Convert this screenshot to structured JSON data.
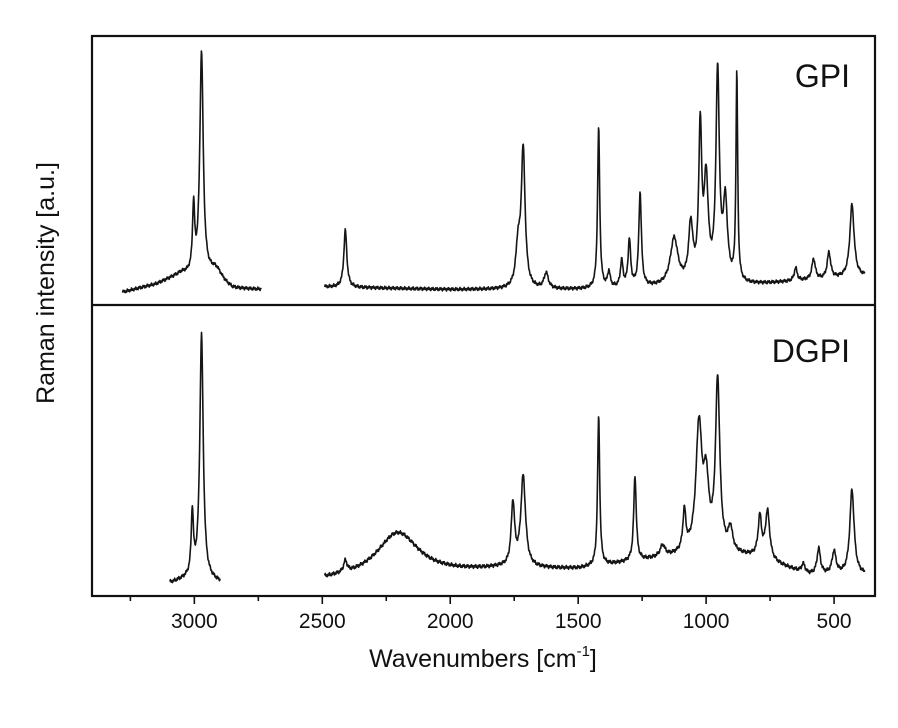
{
  "chart_data": {
    "type": "line",
    "title": "",
    "xlabel": "Wavenumbers [cm",
    "xlabel_sup": "-1",
    "xlabel_close": "]",
    "ylabel": "Raman intensity [a.u.]",
    "x_reversed": true,
    "xlim": [
      3400,
      340
    ],
    "ylim": [
      0,
      1
    ],
    "x_ticks": [
      3000,
      2500,
      2000,
      1500,
      1000,
      500
    ],
    "x_tick_labels": [
      "3000",
      "2500",
      "2000",
      "1500",
      "1000",
      "500"
    ],
    "y_ticks_shown": false,
    "grid": false,
    "legend": "none",
    "panels": [
      {
        "label": "GPI",
        "baseline": 0.03,
        "segments": [
          {
            "x_range": [
              3280,
              2740
            ],
            "baseline_points": [
              [
                3280,
                0.03
              ],
              [
                3150,
                0.06
              ],
              [
                3050,
                0.1
              ],
              [
                2950,
                0.08
              ],
              [
                2850,
                0.04
              ],
              [
                2740,
                0.04
              ]
            ]
          },
          {
            "x_range": [
              2490,
              380
            ],
            "baseline_points": [
              [
                2490,
                0.05
              ],
              [
                2000,
                0.04
              ],
              [
                1500,
                0.04
              ],
              [
                1100,
                0.05
              ],
              [
                800,
                0.06
              ],
              [
                380,
                0.09
              ]
            ]
          }
        ],
        "peaks": [
          {
            "x": 2972,
            "height": 0.86,
            "width": 8
          },
          {
            "x": 3003,
            "height": 0.25,
            "width": 5
          },
          {
            "x": 2915,
            "height": 0.05,
            "width": 30
          },
          {
            "x": 2410,
            "height": 0.22,
            "width": 7
          },
          {
            "x": 1735,
            "height": 0.15,
            "width": 10
          },
          {
            "x": 1715,
            "height": 0.53,
            "width": 9
          },
          {
            "x": 1625,
            "height": 0.06,
            "width": 10
          },
          {
            "x": 1420,
            "height": 0.62,
            "width": 5
          },
          {
            "x": 1380,
            "height": 0.06,
            "width": 6
          },
          {
            "x": 1330,
            "height": 0.1,
            "width": 6
          },
          {
            "x": 1300,
            "height": 0.18,
            "width": 6
          },
          {
            "x": 1258,
            "height": 0.36,
            "width": 6
          },
          {
            "x": 1125,
            "height": 0.18,
            "width": 18
          },
          {
            "x": 1060,
            "height": 0.22,
            "width": 10
          },
          {
            "x": 1023,
            "height": 0.58,
            "width": 7
          },
          {
            "x": 1000,
            "height": 0.38,
            "width": 10
          },
          {
            "x": 955,
            "height": 0.8,
            "width": 8
          },
          {
            "x": 925,
            "height": 0.3,
            "width": 10
          },
          {
            "x": 880,
            "height": 0.8,
            "width": 4
          },
          {
            "x": 650,
            "height": 0.05,
            "width": 7
          },
          {
            "x": 580,
            "height": 0.08,
            "width": 8
          },
          {
            "x": 520,
            "height": 0.1,
            "width": 8
          },
          {
            "x": 430,
            "height": 0.28,
            "width": 10
          }
        ]
      },
      {
        "label": "DGPI",
        "baseline": 0.03,
        "segments": [
          {
            "x_range": [
              3095,
              2900
            ],
            "baseline_points": [
              [
                3095,
                0.03
              ],
              [
                3000,
                0.05
              ],
              [
                2900,
                0.03
              ]
            ]
          },
          {
            "x_range": [
              2490,
              380
            ],
            "baseline_points": [
              [
                2490,
                0.04
              ],
              [
                2200,
                0.05
              ],
              [
                1800,
                0.08
              ],
              [
                1500,
                0.08
              ],
              [
                1150,
                0.12
              ],
              [
                1000,
                0.14
              ],
              [
                800,
                0.12
              ],
              [
                600,
                0.06
              ],
              [
                380,
                0.06
              ]
            ]
          }
        ],
        "peaks": [
          {
            "x": 2972,
            "height": 0.86,
            "width": 8
          },
          {
            "x": 3008,
            "height": 0.22,
            "width": 5
          },
          {
            "x": 2410,
            "height": 0.04,
            "width": 8
          },
          {
            "x": 2205,
            "height": 0.16,
            "width": 100
          },
          {
            "x": 1755,
            "height": 0.22,
            "width": 8
          },
          {
            "x": 1715,
            "height": 0.32,
            "width": 11
          },
          {
            "x": 1420,
            "height": 0.53,
            "width": 5
          },
          {
            "x": 1278,
            "height": 0.3,
            "width": 6
          },
          {
            "x": 1170,
            "height": 0.04,
            "width": 12
          },
          {
            "x": 1085,
            "height": 0.14,
            "width": 7
          },
          {
            "x": 1028,
            "height": 0.44,
            "width": 14
          },
          {
            "x": 1000,
            "height": 0.22,
            "width": 12
          },
          {
            "x": 955,
            "height": 0.6,
            "width": 10
          },
          {
            "x": 905,
            "height": 0.08,
            "width": 10
          },
          {
            "x": 790,
            "height": 0.14,
            "width": 8
          },
          {
            "x": 760,
            "height": 0.17,
            "width": 10
          },
          {
            "x": 620,
            "height": 0.03,
            "width": 8
          },
          {
            "x": 560,
            "height": 0.09,
            "width": 8
          },
          {
            "x": 500,
            "height": 0.08,
            "width": 9
          },
          {
            "x": 430,
            "height": 0.3,
            "width": 10
          }
        ]
      }
    ]
  }
}
